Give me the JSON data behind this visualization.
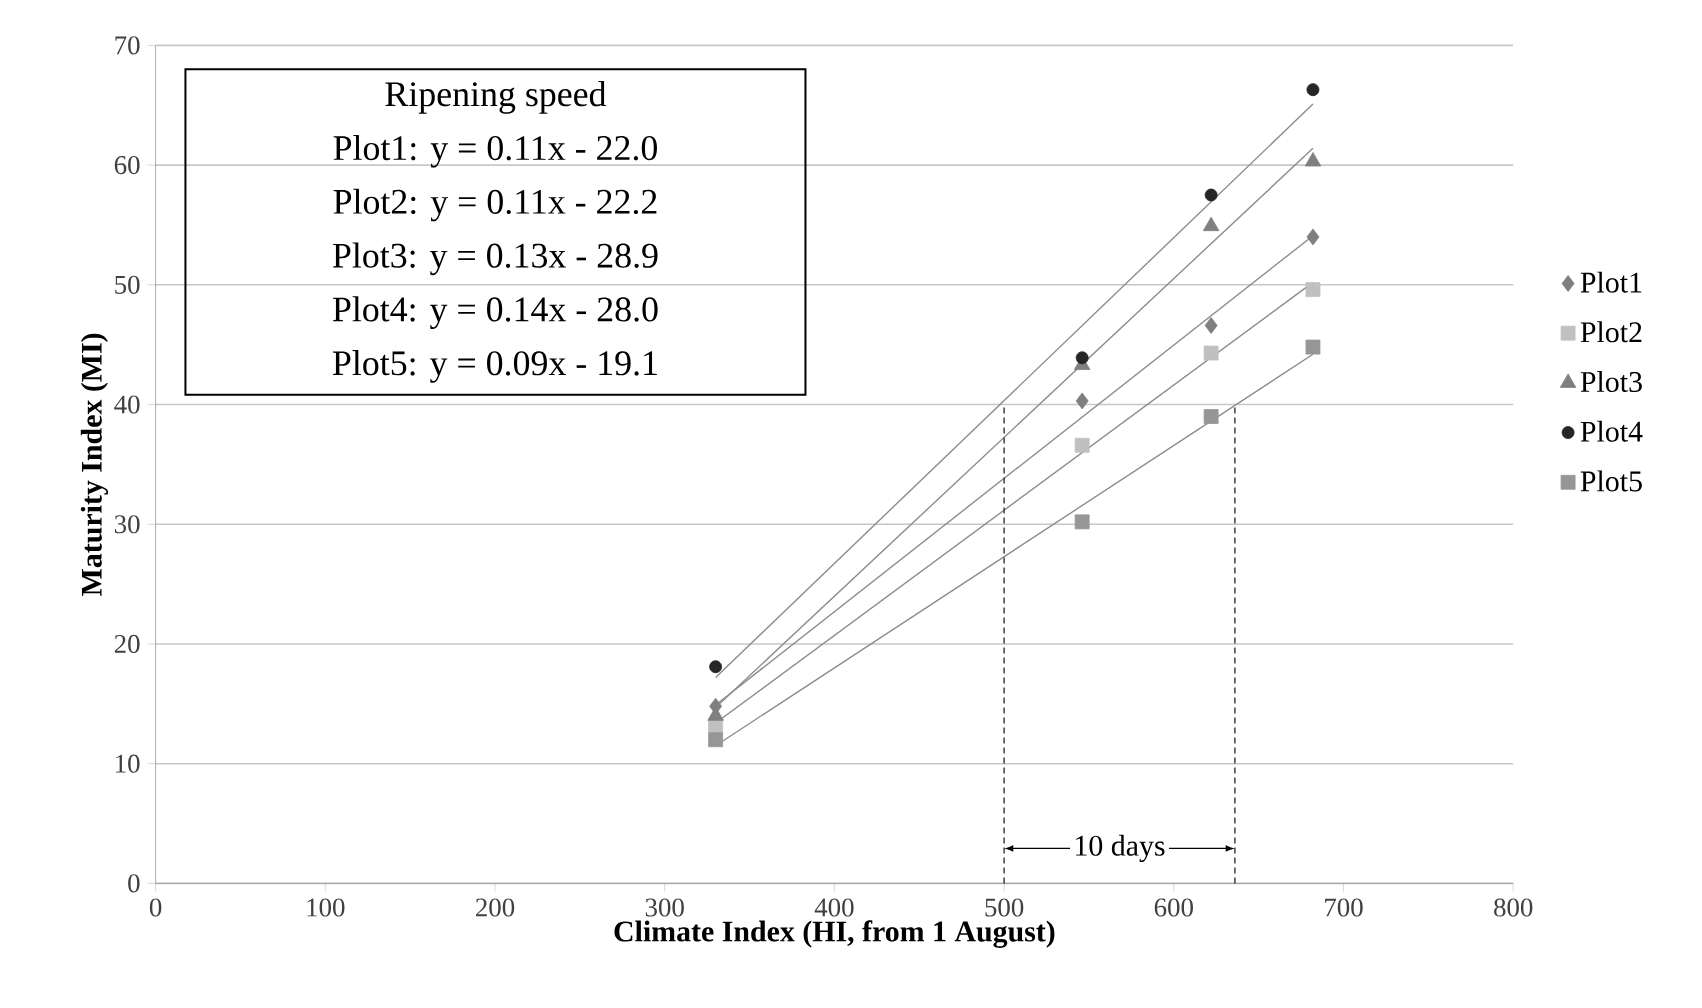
{
  "chart_data": {
    "type": "scatter",
    "xlabel": "Climate Index (HI, from 1 August)",
    "ylabel": "Maturity Index (MI)",
    "xlim": [
      0,
      800
    ],
    "xticks": [
      0,
      100,
      200,
      300,
      400,
      500,
      600,
      700,
      800
    ],
    "ylim": [
      0,
      70
    ],
    "yticks": [
      0,
      10,
      20,
      30,
      40,
      50,
      60,
      70
    ],
    "grid": "y",
    "legend": "right",
    "series": [
      {
        "name": "Plot1",
        "color": "#7f7f7f",
        "marker": "diamond",
        "x": [
          330,
          546,
          622,
          682
        ],
        "values": [
          14.8,
          40.3,
          46.6,
          54.0
        ]
      },
      {
        "name": "Plot2",
        "color": "#c0c0c0",
        "marker": "square",
        "x": [
          330,
          546,
          622,
          682
        ],
        "values": [
          13.1,
          36.6,
          44.3,
          49.6
        ]
      },
      {
        "name": "Plot3",
        "color": "#808080",
        "marker": "triangle",
        "x": [
          330,
          546,
          622,
          682
        ],
        "values": [
          14.0,
          43.3,
          54.9,
          60.3
        ]
      },
      {
        "name": "Plot4",
        "color": "#262626",
        "marker": "circle",
        "x": [
          330,
          546,
          622,
          682
        ],
        "values": [
          18.1,
          43.9,
          57.5,
          66.3
        ]
      },
      {
        "name": "Plot5",
        "color": "#969696",
        "marker": "square",
        "x": [
          330,
          546,
          622,
          682
        ],
        "values": [
          12.0,
          30.2,
          39.0,
          44.8
        ]
      },
      {
        "type": "line",
        "color": "#8c8c8c",
        "marker": "none",
        "x": [
          330,
          682
        ],
        "values": [
          14.9,
          54.1
        ]
      },
      {
        "type": "line",
        "color": "#8c8c8c",
        "marker": "none",
        "x": [
          330,
          682
        ],
        "values": [
          13.4,
          50.2
        ]
      },
      {
        "type": "line",
        "color": "#8c8c8c",
        "marker": "none",
        "x": [
          330,
          682
        ],
        "values": [
          14.7,
          61.4
        ]
      },
      {
        "type": "line",
        "color": "#8c8c8c",
        "marker": "none",
        "x": [
          330,
          682
        ],
        "values": [
          17.2,
          65.1
        ]
      },
      {
        "type": "line",
        "color": "#8c8c8c",
        "marker": "none",
        "x": [
          330,
          682
        ],
        "values": [
          11.5,
          44.2
        ]
      },
      {
        "type": "line",
        "color": "#333333",
        "marker": "none",
        "line_style": "dashed",
        "x": [
          500,
          500
        ],
        "values": [
          0,
          40
        ]
      },
      {
        "type": "line",
        "color": "#333333",
        "marker": "none",
        "line_style": "dashed",
        "x": [
          636,
          636
        ],
        "values": [
          0,
          40
        ]
      }
    ],
    "annotations": [
      "Ripening speed",
      "Plot1: y = 0.11x - 22.0",
      "Plot2: y = 0.11x - 22.2",
      "Plot3: y = 0.13x - 28.9",
      "Plot4: y = 0.14x - 28.0",
      "Plot5: y = 0.09x - 19.1",
      "10 days"
    ]
  }
}
